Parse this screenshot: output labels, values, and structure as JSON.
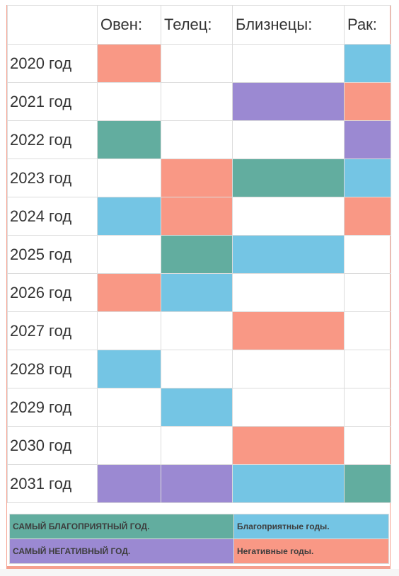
{
  "table": {
    "headers": [
      "Овен:",
      "Телец:",
      "Близнецы:",
      "Рак:"
    ],
    "rows": [
      {
        "year": "2020 год",
        "cells": [
          "salmon",
          "",
          "",
          "blue"
        ]
      },
      {
        "year": "2021 год",
        "cells": [
          "",
          "",
          "purple",
          "salmon"
        ]
      },
      {
        "year": "2022 год",
        "cells": [
          "teal",
          "",
          "",
          "purple"
        ]
      },
      {
        "year": "2023 год",
        "cells": [
          "",
          "salmon",
          "teal",
          "blue"
        ]
      },
      {
        "year": "2024 год",
        "cells": [
          "blue",
          "salmon",
          "",
          "salmon"
        ]
      },
      {
        "year": "2025 год",
        "cells": [
          "",
          "teal",
          "blue",
          ""
        ]
      },
      {
        "year": "2026 год",
        "cells": [
          "salmon",
          "blue",
          "",
          ""
        ]
      },
      {
        "year": "2027 год",
        "cells": [
          "",
          "",
          "salmon",
          ""
        ]
      },
      {
        "year": "2028 год",
        "cells": [
          "blue",
          "",
          "",
          ""
        ]
      },
      {
        "year": "2029 год",
        "cells": [
          "",
          "blue",
          "",
          ""
        ]
      },
      {
        "year": "2030 год",
        "cells": [
          "",
          "",
          "salmon",
          ""
        ]
      },
      {
        "year": "2031 год",
        "cells": [
          "purple",
          "purple",
          "blue",
          "teal"
        ]
      }
    ]
  },
  "legend": {
    "best_year": "САМЫЙ БЛАГОПРИЯТНЫЙ ГОД.",
    "good_years": "Благоприятные годы.",
    "worst_year": "САМЫЙ НЕГАТИВНЫЙ ГОД.",
    "bad_years": "Негативные годы."
  },
  "colors": {
    "teal": "#62ad9f",
    "blue": "#74c5e4",
    "salmon": "#f99885",
    "purple": "#9b89d2",
    "frame": "#f5a08f"
  }
}
